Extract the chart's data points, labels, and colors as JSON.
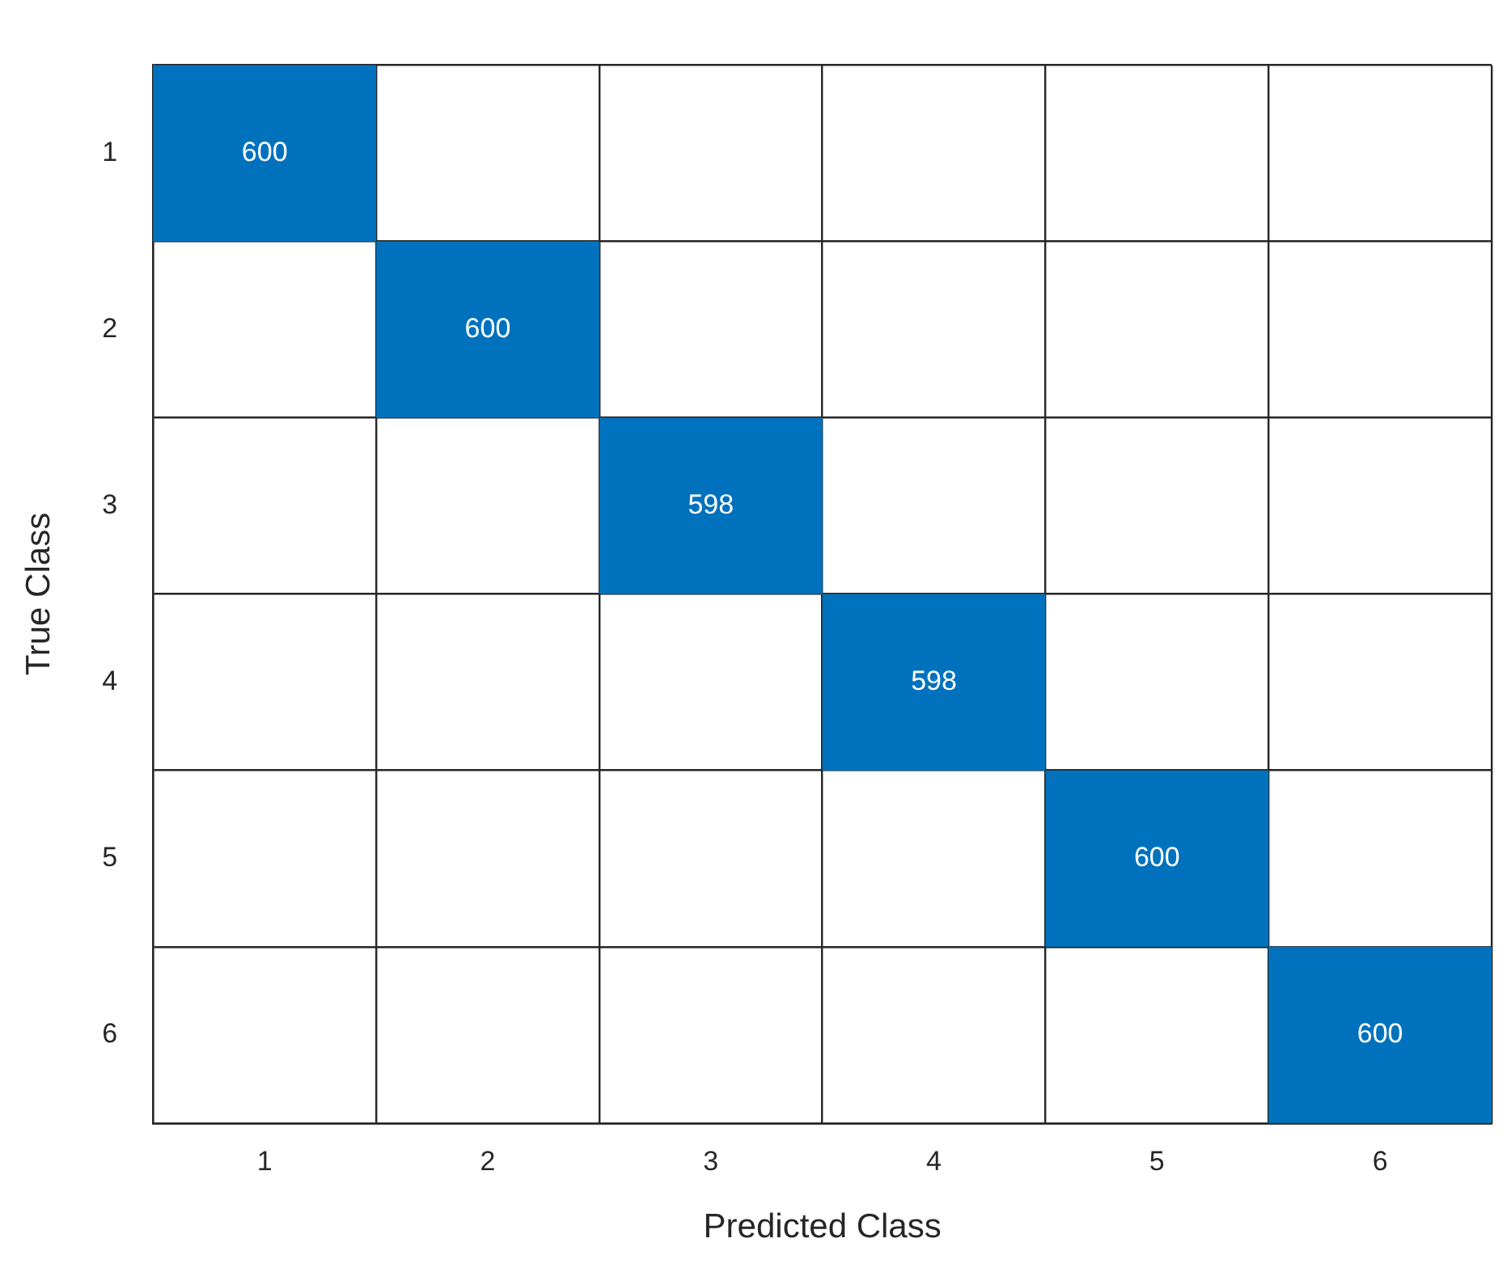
{
  "chart_data": {
    "type": "heatmap",
    "xlabel": "Predicted Class",
    "ylabel": "True Class",
    "categories": [
      "1",
      "2",
      "3",
      "4",
      "5",
      "6"
    ],
    "y_categories": [
      "1",
      "2",
      "3",
      "4",
      "5",
      "6"
    ],
    "cells": [
      [
        600,
        null,
        null,
        null,
        null,
        null
      ],
      [
        null,
        600,
        null,
        null,
        null,
        null
      ],
      [
        null,
        null,
        598,
        null,
        null,
        null
      ],
      [
        null,
        null,
        null,
        598,
        null,
        null
      ],
      [
        null,
        null,
        null,
        null,
        600,
        null
      ],
      [
        null,
        null,
        null,
        null,
        null,
        600
      ]
    ],
    "color": "#0072bd",
    "data_labels": true,
    "grid": true
  }
}
